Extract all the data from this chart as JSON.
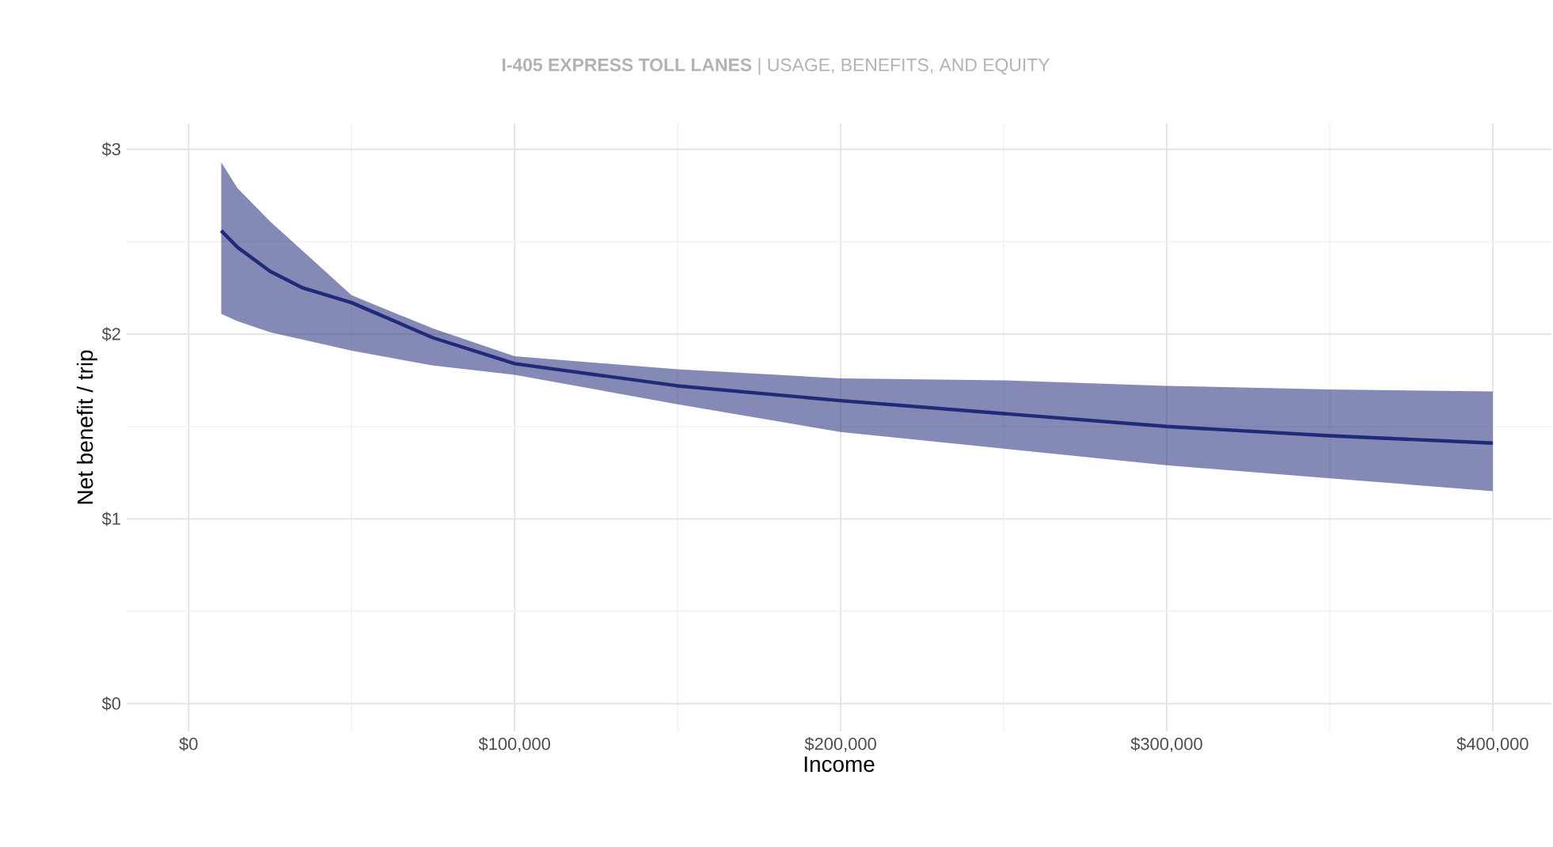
{
  "chart_data": {
    "type": "line",
    "title": "**I-405 EXPRESS TOLL LANES** | USAGE, BENEFITS, AND EQUITY",
    "xlabel": "Income",
    "ylabel": "Net benefit / trip",
    "x": [
      10000,
      15000,
      25000,
      35000,
      50000,
      75000,
      100000,
      150000,
      200000,
      250000,
      300000,
      350000,
      400000
    ],
    "series": [
      {
        "color": "#1f2a78",
        "values": [
          2.56,
          2.47,
          2.34,
          2.25,
          2.17,
          1.98,
          1.84,
          1.72,
          1.64,
          1.57,
          1.5,
          1.45,
          1.41
        ],
        "lower": [
          2.11,
          2.07,
          2.01,
          1.97,
          1.91,
          1.83,
          1.78,
          1.62,
          1.47,
          1.38,
          1.29,
          1.22,
          1.15
        ],
        "upper": [
          2.93,
          2.79,
          2.61,
          2.45,
          2.21,
          2.03,
          1.88,
          1.81,
          1.76,
          1.75,
          1.72,
          1.7,
          1.69
        ]
      }
    ],
    "xlim": [
      -19000,
      418000
    ],
    "ylim": [
      -0.15,
      3.14
    ],
    "xticks": [
      {
        "value": 0,
        "label": "$0"
      },
      {
        "value": 100000,
        "label": "$100,000"
      },
      {
        "value": 200000,
        "label": "$200,000"
      },
      {
        "value": 300000,
        "label": "$300,000"
      },
      {
        "value": 400000,
        "label": "$400,000"
      }
    ],
    "yticks": [
      {
        "value": 0,
        "label": "$0"
      },
      {
        "value": 1,
        "label": "$1"
      },
      {
        "value": 2,
        "label": "$2"
      },
      {
        "value": 3,
        "label": "$3"
      }
    ],
    "grid": true,
    "marker": "none",
    "line_style": "solid"
  }
}
